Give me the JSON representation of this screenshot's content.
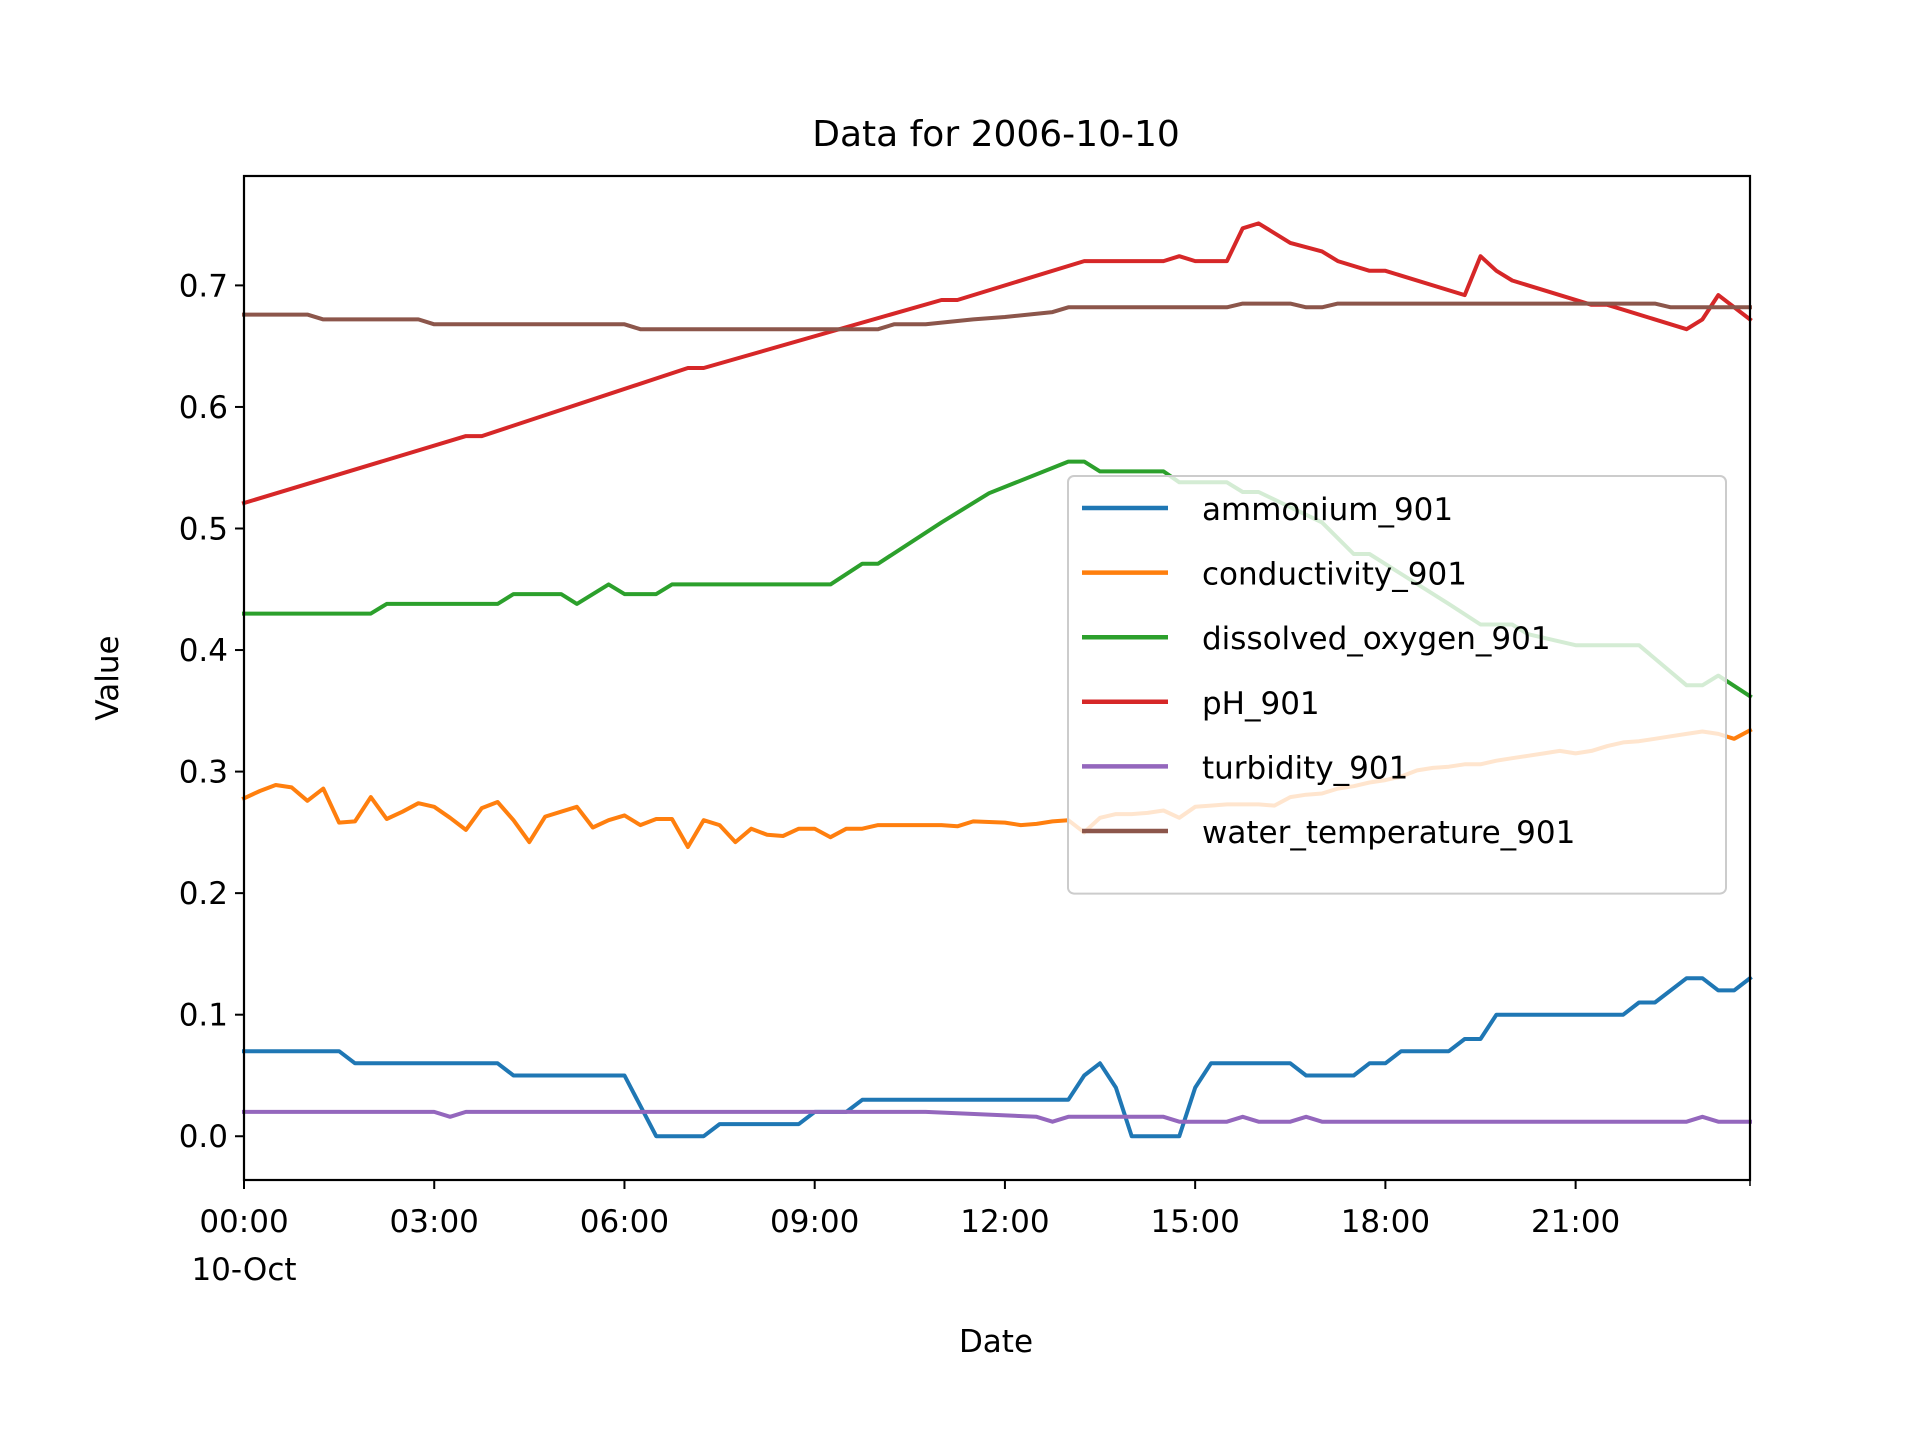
{
  "chart_data": {
    "type": "line",
    "title": "Data for 2006-10-10",
    "xlabel": "Date",
    "ylabel": "Value",
    "x_domain": [
      "2006-10-10 00:00",
      "2006-10-10 23:45"
    ],
    "ylim": [
      -0.036,
      0.79
    ],
    "x_ticks": [
      {
        "time": "00:00",
        "label": "00:00",
        "sublabel": "10-Oct"
      },
      {
        "time": "03:00",
        "label": "03:00"
      },
      {
        "time": "06:00",
        "label": "06:00"
      },
      {
        "time": "09:00",
        "label": "09:00"
      },
      {
        "time": "12:00",
        "label": "12:00"
      },
      {
        "time": "15:00",
        "label": "15:00"
      },
      {
        "time": "18:00",
        "label": "18:00"
      },
      {
        "time": "21:00",
        "label": "21:00"
      }
    ],
    "y_ticks": [
      "0.0",
      "0.1",
      "0.2",
      "0.3",
      "0.4",
      "0.5",
      "0.6",
      "0.7"
    ],
    "grid": false,
    "legend_position": "center-right",
    "series": [
      {
        "name": "ammonium_901",
        "color": "#1f77b4",
        "points": [
          [
            "00:00",
            0.07
          ],
          [
            "01:30",
            0.07
          ],
          [
            "01:45",
            0.06
          ],
          [
            "04:00",
            0.06
          ],
          [
            "04:15",
            0.05
          ],
          [
            "06:00",
            0.05
          ],
          [
            "06:30",
            0.0
          ],
          [
            "07:15",
            0.0
          ],
          [
            "07:30",
            0.01
          ],
          [
            "08:45",
            0.01
          ],
          [
            "09:00",
            0.02
          ],
          [
            "09:30",
            0.02
          ],
          [
            "09:45",
            0.03
          ],
          [
            "13:00",
            0.03
          ],
          [
            "13:15",
            0.05
          ],
          [
            "13:30",
            0.06
          ],
          [
            "13:45",
            0.04
          ],
          [
            "14:00",
            0.0
          ],
          [
            "14:45",
            0.0
          ],
          [
            "15:00",
            0.04
          ],
          [
            "15:15",
            0.06
          ],
          [
            "16:30",
            0.06
          ],
          [
            "16:45",
            0.05
          ],
          [
            "17:30",
            0.05
          ],
          [
            "17:45",
            0.06
          ],
          [
            "18:00",
            0.06
          ],
          [
            "18:15",
            0.07
          ],
          [
            "19:00",
            0.07
          ],
          [
            "19:15",
            0.08
          ],
          [
            "19:30",
            0.08
          ],
          [
            "19:45",
            0.1
          ],
          [
            "21:45",
            0.1
          ],
          [
            "22:00",
            0.11
          ],
          [
            "22:15",
            0.11
          ],
          [
            "22:45",
            0.13
          ],
          [
            "23:00",
            0.13
          ],
          [
            "23:15",
            0.12
          ],
          [
            "23:30",
            0.12
          ],
          [
            "23:45",
            0.13
          ]
        ]
      },
      {
        "name": "conductivity_901",
        "color": "#ff7f0e",
        "points": [
          [
            "00:00",
            0.278
          ],
          [
            "00:15",
            0.284
          ],
          [
            "00:30",
            0.289
          ],
          [
            "00:45",
            0.287
          ],
          [
            "01:00",
            0.276
          ],
          [
            "01:15",
            0.286
          ],
          [
            "01:30",
            0.258
          ],
          [
            "01:45",
            0.259
          ],
          [
            "02:00",
            0.279
          ],
          [
            "02:15",
            0.261
          ],
          [
            "02:30",
            0.267
          ],
          [
            "02:45",
            0.274
          ],
          [
            "03:00",
            0.271
          ],
          [
            "03:15",
            0.262
          ],
          [
            "03:30",
            0.252
          ],
          [
            "03:45",
            0.27
          ],
          [
            "04:00",
            0.275
          ],
          [
            "04:15",
            0.26
          ],
          [
            "04:30",
            0.242
          ],
          [
            "04:45",
            0.263
          ],
          [
            "05:00",
            0.267
          ],
          [
            "05:15",
            0.271
          ],
          [
            "05:30",
            0.254
          ],
          [
            "05:45",
            0.26
          ],
          [
            "06:00",
            0.264
          ],
          [
            "06:15",
            0.256
          ],
          [
            "06:30",
            0.261
          ],
          [
            "06:45",
            0.261
          ],
          [
            "07:00",
            0.238
          ],
          [
            "07:15",
            0.26
          ],
          [
            "07:30",
            0.256
          ],
          [
            "07:45",
            0.242
          ],
          [
            "08:00",
            0.253
          ],
          [
            "08:15",
            0.248
          ],
          [
            "08:30",
            0.247
          ],
          [
            "08:45",
            0.253
          ],
          [
            "09:00",
            0.253
          ],
          [
            "09:15",
            0.246
          ],
          [
            "09:30",
            0.253
          ],
          [
            "09:45",
            0.253
          ],
          [
            "10:00",
            0.256
          ],
          [
            "10:30",
            0.256
          ],
          [
            "11:00",
            0.256
          ],
          [
            "11:15",
            0.255
          ],
          [
            "11:30",
            0.259
          ],
          [
            "12:00",
            0.258
          ],
          [
            "12:15",
            0.256
          ],
          [
            "12:30",
            0.257
          ],
          [
            "12:45",
            0.259
          ],
          [
            "13:00",
            0.26
          ],
          [
            "13:15",
            0.25
          ],
          [
            "13:30",
            0.262
          ],
          [
            "13:45",
            0.265
          ],
          [
            "14:00",
            0.265
          ],
          [
            "14:15",
            0.266
          ],
          [
            "14:30",
            0.268
          ],
          [
            "14:45",
            0.262
          ],
          [
            "15:00",
            0.271
          ],
          [
            "15:15",
            0.272
          ],
          [
            "15:30",
            0.273
          ],
          [
            "16:00",
            0.273
          ],
          [
            "16:15",
            0.272
          ],
          [
            "16:30",
            0.279
          ],
          [
            "16:45",
            0.281
          ],
          [
            "17:00",
            0.282
          ],
          [
            "17:15",
            0.286
          ],
          [
            "17:30",
            0.288
          ],
          [
            "17:45",
            0.291
          ],
          [
            "18:00",
            0.293
          ],
          [
            "18:15",
            0.296
          ],
          [
            "18:30",
            0.301
          ],
          [
            "18:45",
            0.303
          ],
          [
            "19:00",
            0.304
          ],
          [
            "19:15",
            0.306
          ],
          [
            "19:30",
            0.306
          ],
          [
            "19:45",
            0.309
          ],
          [
            "20:00",
            0.311
          ],
          [
            "20:15",
            0.313
          ],
          [
            "20:30",
            0.315
          ],
          [
            "20:45",
            0.317
          ],
          [
            "21:00",
            0.315
          ],
          [
            "21:15",
            0.317
          ],
          [
            "21:30",
            0.321
          ],
          [
            "21:45",
            0.324
          ],
          [
            "22:00",
            0.325
          ],
          [
            "22:15",
            0.327
          ],
          [
            "22:30",
            0.329
          ],
          [
            "22:45",
            0.331
          ],
          [
            "23:00",
            0.333
          ],
          [
            "23:15",
            0.331
          ],
          [
            "23:30",
            0.327
          ],
          [
            "23:45",
            0.334
          ]
        ]
      },
      {
        "name": "dissolved_oxygen_901",
        "color": "#2ca02c",
        "points": [
          [
            "00:00",
            0.43
          ],
          [
            "02:00",
            0.43
          ],
          [
            "02:15",
            0.438
          ],
          [
            "04:00",
            0.438
          ],
          [
            "04:15",
            0.446
          ],
          [
            "05:00",
            0.446
          ],
          [
            "05:15",
            0.438
          ],
          [
            "05:45",
            0.454
          ],
          [
            "06:00",
            0.446
          ],
          [
            "06:30",
            0.446
          ],
          [
            "06:45",
            0.454
          ],
          [
            "09:15",
            0.454
          ],
          [
            "09:45",
            0.471
          ],
          [
            "10:00",
            0.471
          ],
          [
            "11:00",
            0.505
          ],
          [
            "11:45",
            0.529
          ],
          [
            "13:00",
            0.555
          ],
          [
            "13:15",
            0.555
          ],
          [
            "13:30",
            0.547
          ],
          [
            "14:30",
            0.547
          ],
          [
            "14:45",
            0.538
          ],
          [
            "15:30",
            0.538
          ],
          [
            "15:45",
            0.53
          ],
          [
            "16:00",
            0.53
          ],
          [
            "17:00",
            0.505
          ],
          [
            "17:30",
            0.479
          ],
          [
            "17:45",
            0.479
          ],
          [
            "19:00",
            0.438
          ],
          [
            "19:30",
            0.421
          ],
          [
            "20:00",
            0.421
          ],
          [
            "20:15",
            0.413
          ],
          [
            "21:00",
            0.404
          ],
          [
            "22:00",
            0.404
          ],
          [
            "22:45",
            0.371
          ],
          [
            "23:00",
            0.371
          ],
          [
            "23:15",
            0.379
          ],
          [
            "23:45",
            0.362
          ]
        ]
      },
      {
        "name": "pH_901",
        "color": "#d62728",
        "points": [
          [
            "00:00",
            0.521
          ],
          [
            "03:30",
            0.576
          ],
          [
            "03:45",
            0.576
          ],
          [
            "07:00",
            0.632
          ],
          [
            "07:15",
            0.632
          ],
          [
            "11:00",
            0.688
          ],
          [
            "11:15",
            0.688
          ],
          [
            "13:15",
            0.72
          ],
          [
            "14:30",
            0.72
          ],
          [
            "14:45",
            0.724
          ],
          [
            "15:00",
            0.72
          ],
          [
            "15:30",
            0.72
          ],
          [
            "15:45",
            0.747
          ],
          [
            "16:00",
            0.751
          ],
          [
            "16:30",
            0.735
          ],
          [
            "17:00",
            0.728
          ],
          [
            "17:15",
            0.72
          ],
          [
            "17:45",
            0.712
          ],
          [
            "18:00",
            0.712
          ],
          [
            "19:15",
            0.692
          ],
          [
            "19:30",
            0.724
          ],
          [
            "19:45",
            0.712
          ],
          [
            "20:00",
            0.704
          ],
          [
            "21:15",
            0.684
          ],
          [
            "21:30",
            0.684
          ],
          [
            "22:45",
            0.664
          ],
          [
            "23:00",
            0.672
          ],
          [
            "23:15",
            0.692
          ],
          [
            "23:45",
            0.672
          ]
        ]
      },
      {
        "name": "turbidity_901",
        "color": "#9467bd",
        "points": [
          [
            "00:00",
            0.02
          ],
          [
            "03:00",
            0.02
          ],
          [
            "03:15",
            0.016
          ],
          [
            "03:30",
            0.02
          ],
          [
            "10:45",
            0.02
          ],
          [
            "12:30",
            0.016
          ],
          [
            "12:45",
            0.012
          ],
          [
            "13:00",
            0.016
          ],
          [
            "14:30",
            0.016
          ],
          [
            "14:45",
            0.012
          ],
          [
            "15:30",
            0.012
          ],
          [
            "15:45",
            0.016
          ],
          [
            "16:00",
            0.012
          ],
          [
            "16:30",
            0.012
          ],
          [
            "16:45",
            0.016
          ],
          [
            "17:00",
            0.012
          ],
          [
            "22:45",
            0.012
          ],
          [
            "23:00",
            0.016
          ],
          [
            "23:15",
            0.012
          ],
          [
            "23:45",
            0.012
          ]
        ]
      },
      {
        "name": "water_temperature_901",
        "color": "#8c564b",
        "points": [
          [
            "00:00",
            0.676
          ],
          [
            "01:00",
            0.676
          ],
          [
            "01:15",
            0.672
          ],
          [
            "02:45",
            0.672
          ],
          [
            "03:00",
            0.668
          ],
          [
            "06:00",
            0.668
          ],
          [
            "06:15",
            0.664
          ],
          [
            "10:00",
            0.664
          ],
          [
            "10:15",
            0.668
          ],
          [
            "10:45",
            0.668
          ],
          [
            "11:30",
            0.672
          ],
          [
            "12:00",
            0.674
          ],
          [
            "12:45",
            0.678
          ],
          [
            "13:00",
            0.682
          ],
          [
            "15:30",
            0.682
          ],
          [
            "15:45",
            0.685
          ],
          [
            "16:30",
            0.685
          ],
          [
            "16:45",
            0.682
          ],
          [
            "17:00",
            0.682
          ],
          [
            "17:15",
            0.685
          ],
          [
            "22:15",
            0.685
          ],
          [
            "22:30",
            0.682
          ],
          [
            "23:45",
            0.682
          ]
        ]
      }
    ]
  }
}
